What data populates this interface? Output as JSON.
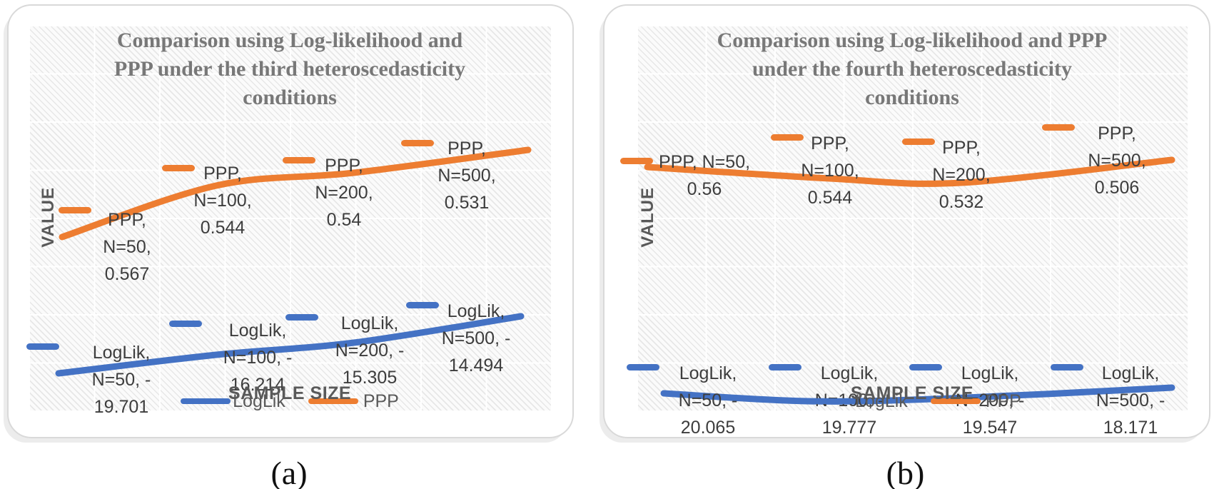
{
  "figure_type": "two-panel smooth line charts comparing Log-likelihood and PPP",
  "colors": {
    "loglik_blue": "#4472C4",
    "ppp_orange": "#ED7D31"
  },
  "figures": [
    {
      "caption": "(a)",
      "chart_data": {
        "type": "line",
        "title": "Comparison using Log-likelihood and PPP under the third heteroscedasticity conditions",
        "title_lines": [
          "Comparison using Log-likelihood and",
          "PPP under the third heteroscedasticity",
          "conditions"
        ],
        "xlabel": "SAMPLE SIZE",
        "ylabel": "VALUE",
        "categories": [
          50,
          100,
          200,
          500
        ],
        "legend": [
          "LogLik",
          "PPP"
        ],
        "legend_position": "bottom",
        "grid": true,
        "series": [
          {
            "name": "LogLik",
            "color": "#4472C4",
            "values": [
              -19.701,
              -16.214,
              -15.305,
              -14.494
            ],
            "point_labels": [
              [
                "LogLik,",
                "N=50, -",
                "19.701"
              ],
              [
                "LogLik,",
                "N=100, -",
                "16.214"
              ],
              [
                "LogLik,",
                "N=200, -",
                "15.305"
              ],
              [
                "LogLik,",
                "N=500, -",
                "14.494"
              ]
            ]
          },
          {
            "name": "PPP",
            "color": "#ED7D31",
            "values": [
              0.567,
              0.544,
              0.54,
              0.531
            ],
            "point_labels": [
              [
                "PPP,",
                "N=50,",
                "0.567"
              ],
              [
                "PPP,",
                "N=100,",
                "0.544"
              ],
              [
                "PPP,",
                "N=200,",
                "0.54"
              ],
              [
                "PPP,",
                "N=500,",
                "0.531"
              ]
            ]
          }
        ]
      }
    },
    {
      "caption": "(b)",
      "chart_data": {
        "type": "line",
        "title": "Comparison using Log-likelihood and PPP under the fourth heteroscedasticity conditions",
        "title_lines": [
          "Comparison using Log-likelihood and PPP",
          "under the fourth heteroscedasticity",
          "conditions"
        ],
        "xlabel": "SAMPLE SIZE",
        "ylabel": "VALUE",
        "categories": [
          50,
          100,
          200,
          500
        ],
        "legend": [
          "LogLik",
          "PPP"
        ],
        "legend_position": "bottom",
        "grid": true,
        "series": [
          {
            "name": "LogLik",
            "color": "#4472C4",
            "values": [
              -20.065,
              -19.777,
              -19.547,
              -18.171
            ],
            "point_labels": [
              [
                "LogLik,",
                "N=50, -",
                "20.065"
              ],
              [
                "LogLik,",
                "N=100, -",
                "19.777"
              ],
              [
                "LogLik,",
                "N=200, -",
                "19.547"
              ],
              [
                "LogLik,",
                "N=500, -",
                "18.171"
              ]
            ]
          },
          {
            "name": "PPP",
            "color": "#ED7D31",
            "values": [
              0.56,
              0.544,
              0.532,
              0.506
            ],
            "point_labels": [
              [
                "PPP, N=50,",
                "0.56"
              ],
              [
                "PPP,",
                "N=100,",
                "0.544"
              ],
              [
                "PPP,",
                "N=200,",
                "0.532"
              ],
              [
                "PPP,",
                "N=500,",
                "0.506"
              ]
            ]
          }
        ]
      }
    }
  ]
}
